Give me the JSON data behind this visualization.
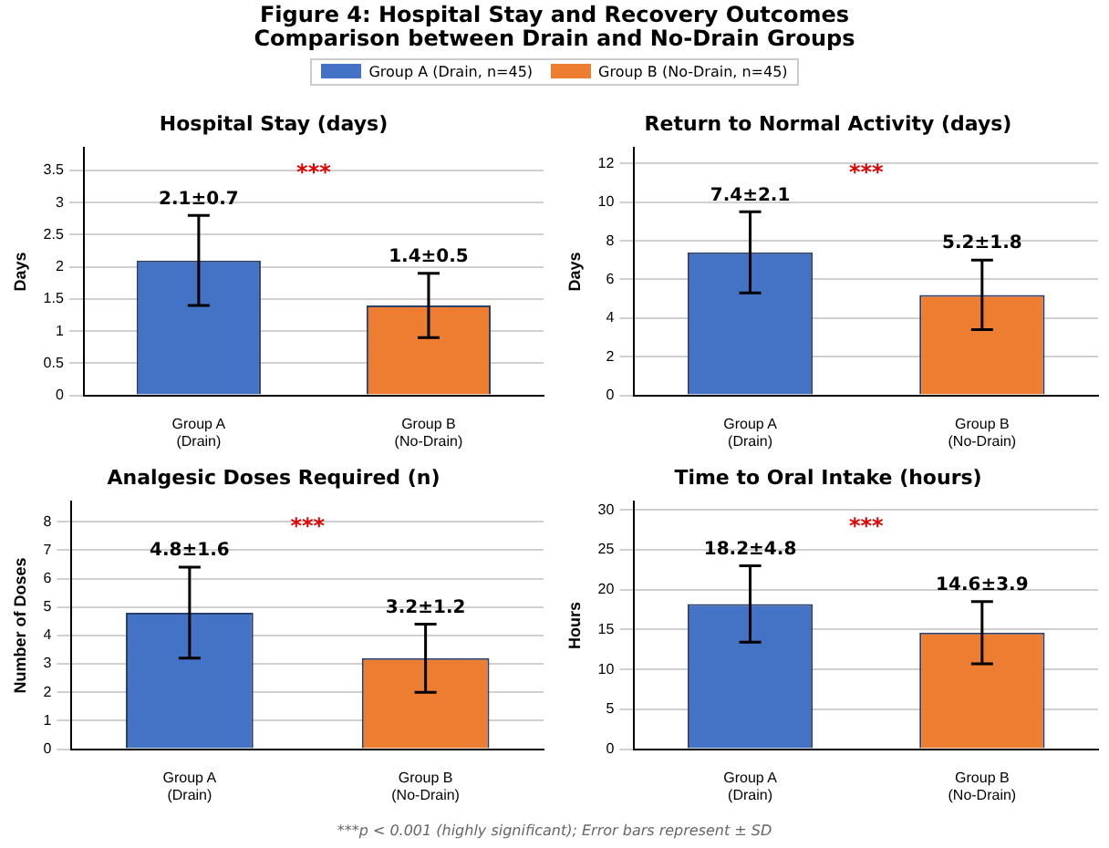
{
  "chart_data": [
    {
      "type": "other",
      "title": "Figure 4: Hospital Stay and Recovery Outcomes\nComparison between Drain and No-Drain Groups",
      "series": [
        {
          "name": "Group A (Drain, n=45)",
          "color": "#4472c4"
        },
        {
          "name": "Group B (No-Drain, n=45)",
          "color": "#ed7d31"
        }
      ],
      "annotations": [
        "***p < 0.001 (highly significant); Error bars represent ± SD"
      ]
    },
    {
      "type": "bar",
      "title": "Hospital Stay (days)",
      "ylabel": "Days",
      "categories": [
        "Group A\n(Drain)",
        "Group B\n(No-Drain)"
      ],
      "values": [
        2.1,
        1.4
      ],
      "errors": [
        0.7,
        0.5
      ],
      "value_labels": [
        "2.1±0.7",
        "1.4±0.5"
      ],
      "colors": [
        "#4472c4",
        "#ed7d31"
      ],
      "ylim": [
        0,
        3.85
      ],
      "yticks": [
        0,
        0.5,
        1,
        1.5,
        2,
        2.5,
        3,
        3.5
      ],
      "grid": "y",
      "annotations": [
        "***"
      ]
    },
    {
      "type": "bar",
      "title": "Return to Normal Activity (days)",
      "ylabel": "Days",
      "categories": [
        "Group A\n(Drain)",
        "Group B\n(No-Drain)"
      ],
      "values": [
        7.4,
        5.2
      ],
      "errors": [
        2.1,
        1.8
      ],
      "value_labels": [
        "7.4±2.1",
        "5.2±1.8"
      ],
      "colors": [
        "#4472c4",
        "#ed7d31"
      ],
      "ylim": [
        0,
        12.8
      ],
      "yticks": [
        0,
        2,
        4,
        6,
        8,
        10,
        12
      ],
      "grid": "y",
      "annotations": [
        "***"
      ]
    },
    {
      "type": "bar",
      "title": "Analgesic Doses Required (n)",
      "ylabel": "Number of Doses",
      "categories": [
        "Group A\n(Drain)",
        "Group B\n(No-Drain)"
      ],
      "values": [
        4.8,
        3.2
      ],
      "errors": [
        1.6,
        1.2
      ],
      "value_labels": [
        "4.8±1.6",
        "3.2±1.2"
      ],
      "colors": [
        "#4472c4",
        "#ed7d31"
      ],
      "ylim": [
        0,
        8.7
      ],
      "yticks": [
        0,
        1,
        2,
        3,
        4,
        5,
        6,
        7,
        8
      ],
      "grid": "y",
      "annotations": [
        "***"
      ]
    },
    {
      "type": "bar",
      "title": "Time to Oral Intake (hours)",
      "ylabel": "Hours",
      "categories": [
        "Group A\n(Drain)",
        "Group B\n(No-Drain)"
      ],
      "values": [
        18.2,
        14.6
      ],
      "errors": [
        4.8,
        3.9
      ],
      "value_labels": [
        "18.2±4.8",
        "14.6±3.9"
      ],
      "colors": [
        "#4472c4",
        "#ed7d31"
      ],
      "ylim": [
        0,
        31
      ],
      "yticks": [
        0,
        5,
        10,
        15,
        20,
        25,
        30
      ],
      "grid": "y",
      "annotations": [
        "***"
      ]
    }
  ]
}
